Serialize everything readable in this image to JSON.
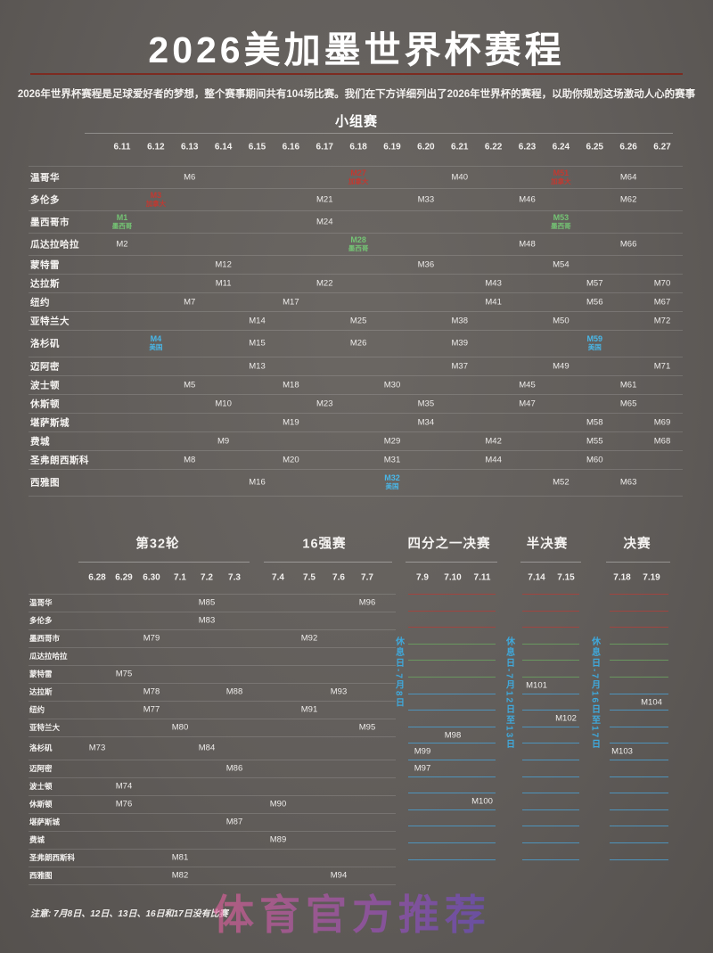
{
  "title": "2026美加墨世界杯赛程",
  "subtitle": "2026年世界杯赛程是足球爱好者的梦想，整个赛事期间共有104场比赛。我们在下方详细列出了2026年世界杯的赛程，以助你规划这场激动人心的赛事",
  "note": "注意: 7月8日、12日、13日、16日和17日没有比赛",
  "watermark": "体育官方推荐",
  "colors": {
    "country": {
      "ca": "#c13931",
      "mx": "#74c374",
      "us": "#49b7e8"
    },
    "lines": {
      "red": "#a04540",
      "green": "#69975f",
      "blue": "#4e93bb"
    },
    "separator": "rgba(255,255,255,0.14)",
    "title_rule": "#7d2b21"
  },
  "cities": [
    "温哥华",
    "多伦多",
    "墨西哥市",
    "瓜达拉哈拉",
    "蒙特雷",
    "达拉斯",
    "纽约",
    "亚特兰大",
    "洛杉矶",
    "迈阿密",
    "波士顿",
    "休斯顿",
    "堪萨斯城",
    "费城",
    "圣弗朗西斯科",
    "西雅图"
  ],
  "group_stage": {
    "heading": "小组赛",
    "dates": [
      "6.11",
      "6.12",
      "6.13",
      "6.14",
      "6.15",
      "6.16",
      "6.17",
      "6.18",
      "6.19",
      "6.20",
      "6.21",
      "6.22",
      "6.23",
      "6.24",
      "6.25",
      "6.26",
      "6.27"
    ],
    "matches": [
      {
        "city": "温哥华",
        "date": "6.13",
        "m": "M6"
      },
      {
        "city": "温哥华",
        "date": "6.18",
        "m": "M27",
        "country": "加拿大",
        "c": "ca"
      },
      {
        "city": "温哥华",
        "date": "6.21",
        "m": "M40"
      },
      {
        "city": "温哥华",
        "date": "6.24",
        "m": "M51",
        "country": "加拿大",
        "c": "ca"
      },
      {
        "city": "温哥华",
        "date": "6.26",
        "m": "M64"
      },
      {
        "city": "多伦多",
        "date": "6.12",
        "m": "M3",
        "country": "加拿大",
        "c": "ca"
      },
      {
        "city": "多伦多",
        "date": "6.17",
        "m": "M21"
      },
      {
        "city": "多伦多",
        "date": "6.20",
        "m": "M33"
      },
      {
        "city": "多伦多",
        "date": "6.23",
        "m": "M46"
      },
      {
        "city": "多伦多",
        "date": "6.26",
        "m": "M62"
      },
      {
        "city": "墨西哥市",
        "date": "6.11",
        "m": "M1",
        "country": "墨西哥",
        "c": "mx"
      },
      {
        "city": "墨西哥市",
        "date": "6.17",
        "m": "M24"
      },
      {
        "city": "墨西哥市",
        "date": "6.24",
        "m": "M53",
        "country": "墨西哥",
        "c": "mx"
      },
      {
        "city": "瓜达拉哈拉",
        "date": "6.11",
        "m": "M2"
      },
      {
        "city": "瓜达拉哈拉",
        "date": "6.18",
        "m": "M28",
        "country": "墨西哥",
        "c": "mx"
      },
      {
        "city": "瓜达拉哈拉",
        "date": "6.23",
        "m": "M48"
      },
      {
        "city": "瓜达拉哈拉",
        "date": "6.26",
        "m": "M66"
      },
      {
        "city": "蒙特雷",
        "date": "6.14",
        "m": "M12"
      },
      {
        "city": "蒙特雷",
        "date": "6.20",
        "m": "M36"
      },
      {
        "city": "蒙特雷",
        "date": "6.24",
        "m": "M54"
      },
      {
        "city": "达拉斯",
        "date": "6.14",
        "m": "M11"
      },
      {
        "city": "达拉斯",
        "date": "6.17",
        "m": "M22"
      },
      {
        "city": "达拉斯",
        "date": "6.22",
        "m": "M43"
      },
      {
        "city": "达拉斯",
        "date": "6.25",
        "m": "M57"
      },
      {
        "city": "达拉斯",
        "date": "6.27",
        "m": "M70"
      },
      {
        "city": "纽约",
        "date": "6.13",
        "m": "M7"
      },
      {
        "city": "纽约",
        "date": "6.16",
        "m": "M17"
      },
      {
        "city": "纽约",
        "date": "6.22",
        "m": "M41"
      },
      {
        "city": "纽约",
        "date": "6.25",
        "m": "M56"
      },
      {
        "city": "纽约",
        "date": "6.27",
        "m": "M67"
      },
      {
        "city": "亚特兰大",
        "date": "6.15",
        "m": "M14"
      },
      {
        "city": "亚特兰大",
        "date": "6.18",
        "m": "M25"
      },
      {
        "city": "亚特兰大",
        "date": "6.21",
        "m": "M38"
      },
      {
        "city": "亚特兰大",
        "date": "6.24",
        "m": "M50"
      },
      {
        "city": "亚特兰大",
        "date": "6.27",
        "m": "M72"
      },
      {
        "city": "洛杉矶",
        "date": "6.12",
        "m": "M4",
        "country": "美国",
        "c": "us"
      },
      {
        "city": "洛杉矶",
        "date": "6.15",
        "m": "M15"
      },
      {
        "city": "洛杉矶",
        "date": "6.18",
        "m": "M26"
      },
      {
        "city": "洛杉矶",
        "date": "6.21",
        "m": "M39"
      },
      {
        "city": "洛杉矶",
        "date": "6.25",
        "m": "M59",
        "country": "美国",
        "c": "us"
      },
      {
        "city": "迈阿密",
        "date": "6.15",
        "m": "M13"
      },
      {
        "city": "迈阿密",
        "date": "6.21",
        "m": "M37"
      },
      {
        "city": "迈阿密",
        "date": "6.24",
        "m": "M49"
      },
      {
        "city": "迈阿密",
        "date": "6.27",
        "m": "M71"
      },
      {
        "city": "波士顿",
        "date": "6.13",
        "m": "M5"
      },
      {
        "city": "波士顿",
        "date": "6.16",
        "m": "M18"
      },
      {
        "city": "波士顿",
        "date": "6.19",
        "m": "M30"
      },
      {
        "city": "波士顿",
        "date": "6.23",
        "m": "M45"
      },
      {
        "city": "波士顿",
        "date": "6.26",
        "m": "M61"
      },
      {
        "city": "休斯顿",
        "date": "6.14",
        "m": "M10"
      },
      {
        "city": "休斯顿",
        "date": "6.17",
        "m": "M23"
      },
      {
        "city": "休斯顿",
        "date": "6.20",
        "m": "M35"
      },
      {
        "city": "休斯顿",
        "date": "6.23",
        "m": "M47"
      },
      {
        "city": "休斯顿",
        "date": "6.26",
        "m": "M65"
      },
      {
        "city": "堪萨斯城",
        "date": "6.16",
        "m": "M19"
      },
      {
        "city": "堪萨斯城",
        "date": "6.20",
        "m": "M34"
      },
      {
        "city": "堪萨斯城",
        "date": "6.25",
        "m": "M58"
      },
      {
        "city": "堪萨斯城",
        "date": "6.27",
        "m": "M69"
      },
      {
        "city": "费城",
        "date": "6.14",
        "m": "M9"
      },
      {
        "city": "费城",
        "date": "6.19",
        "m": "M29"
      },
      {
        "city": "费城",
        "date": "6.22",
        "m": "M42"
      },
      {
        "city": "费城",
        "date": "6.25",
        "m": "M55"
      },
      {
        "city": "费城",
        "date": "6.27",
        "m": "M68"
      },
      {
        "city": "圣弗朗西斯科",
        "date": "6.13",
        "m": "M8"
      },
      {
        "city": "圣弗朗西斯科",
        "date": "6.16",
        "m": "M20"
      },
      {
        "city": "圣弗朗西斯科",
        "date": "6.19",
        "m": "M31"
      },
      {
        "city": "圣弗朗西斯科",
        "date": "6.22",
        "m": "M44"
      },
      {
        "city": "圣弗朗西斯科",
        "date": "6.25",
        "m": "M60"
      },
      {
        "city": "西雅图",
        "date": "6.15",
        "m": "M16"
      },
      {
        "city": "西雅图",
        "date": "6.19",
        "m": "M32",
        "country": "美国",
        "c": "us"
      },
      {
        "city": "西雅图",
        "date": "6.24",
        "m": "M52"
      },
      {
        "city": "西雅图",
        "date": "6.26",
        "m": "M63"
      }
    ]
  },
  "knockout": {
    "sections": [
      {
        "label": "第32轮",
        "dates": [
          "6.28",
          "6.29",
          "6.30",
          "7.1",
          "7.2",
          "7.3"
        ]
      },
      {
        "label": "16强赛",
        "dates": [
          "7.4",
          "7.5",
          "7.6",
          "7.7"
        ]
      },
      {
        "label": "四分之一决赛",
        "dates": [
          "7.9",
          "7.10",
          "7.11"
        ]
      },
      {
        "label": "半决赛",
        "dates": [
          "7.14",
          "7.15"
        ]
      },
      {
        "label": "决赛",
        "dates": [
          "7.18",
          "7.19"
        ]
      }
    ],
    "rest_days": [
      "休息日-7月8日",
      "休息日-7月12日至13日",
      "休息日-7月16日至17日"
    ],
    "matches": [
      {
        "city": "温哥华",
        "date": "7.2",
        "m": "M85"
      },
      {
        "city": "温哥华",
        "date": "7.7",
        "m": "M96"
      },
      {
        "city": "多伦多",
        "date": "7.2",
        "m": "M83"
      },
      {
        "city": "墨西哥市",
        "date": "6.30",
        "m": "M79"
      },
      {
        "city": "墨西哥市",
        "date": "7.5",
        "m": "M92"
      },
      {
        "city": "蒙特雷",
        "date": "6.29",
        "m": "M75"
      },
      {
        "city": "达拉斯",
        "date": "6.30",
        "m": "M78"
      },
      {
        "city": "达拉斯",
        "date": "7.3",
        "m": "M88"
      },
      {
        "city": "达拉斯",
        "date": "7.6",
        "m": "M93"
      },
      {
        "city": "达拉斯",
        "date": "7.14",
        "m": "M101"
      },
      {
        "city": "纽约",
        "date": "6.30",
        "m": "M77"
      },
      {
        "city": "纽约",
        "date": "7.5",
        "m": "M91"
      },
      {
        "city": "纽约",
        "date": "7.19",
        "m": "M104"
      },
      {
        "city": "亚特兰大",
        "date": "7.1",
        "m": "M80"
      },
      {
        "city": "亚特兰大",
        "date": "7.7",
        "m": "M95"
      },
      {
        "city": "亚特兰大",
        "date": "7.15",
        "m": "M102"
      },
      {
        "city": "洛杉矶",
        "date": "6.28",
        "m": "M73"
      },
      {
        "city": "洛杉矶",
        "date": "7.2",
        "m": "M84"
      },
      {
        "city": "洛杉矶",
        "date": "7.10",
        "m": "M98"
      },
      {
        "city": "迈阿密",
        "date": "7.3",
        "m": "M86"
      },
      {
        "city": "迈阿密",
        "date": "7.9",
        "m": "M99"
      },
      {
        "city": "迈阿密",
        "date": "7.18",
        "m": "M103"
      },
      {
        "city": "波士顿",
        "date": "6.29",
        "m": "M74"
      },
      {
        "city": "波士顿",
        "date": "7.9",
        "m": "M97"
      },
      {
        "city": "休斯顿",
        "date": "6.29",
        "m": "M76"
      },
      {
        "city": "休斯顿",
        "date": "7.4",
        "m": "M90"
      },
      {
        "city": "堪萨斯城",
        "date": "7.3",
        "m": "M87"
      },
      {
        "city": "堪萨斯城",
        "date": "7.11",
        "m": "M100"
      },
      {
        "city": "费城",
        "date": "7.4",
        "m": "M89"
      },
      {
        "city": "圣弗朗西斯科",
        "date": "7.1",
        "m": "M81"
      },
      {
        "city": "西雅图",
        "date": "7.1",
        "m": "M82"
      },
      {
        "city": "西雅图",
        "date": "7.6",
        "m": "M94"
      }
    ]
  }
}
